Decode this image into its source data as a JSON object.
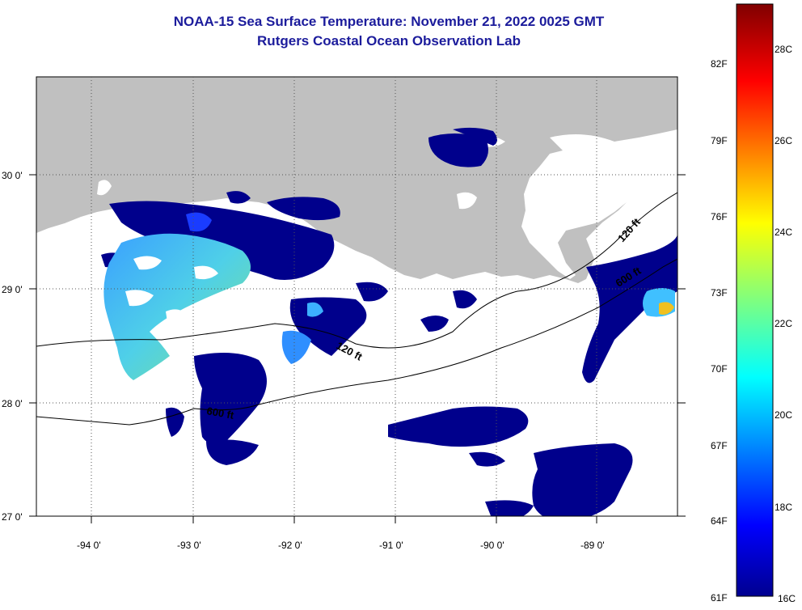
{
  "title": "NOAA-15 Sea Surface Temperature:  November 21, 2022 0025 GMT",
  "subtitle": "Rutgers Coastal Ocean Observation Lab",
  "map": {
    "lat_labels": [
      "30 0'",
      "29 0'",
      "28 0'",
      "27 0'"
    ],
    "lon_labels": [
      "-94 0'",
      "-93 0'",
      "-92 0'",
      "-91 0'",
      "-90 0'",
      "-89 0'"
    ],
    "contour_labels": [
      "120 ft",
      "600 ft",
      "120 ft",
      "600 ft"
    ],
    "land_color": "#c0c0c0",
    "cloud_color": "#ffffff"
  },
  "colorbar": {
    "fahrenheit": [
      "82F",
      "79F",
      "76F",
      "73F",
      "70F",
      "67F",
      "64F",
      "61F"
    ],
    "celsius": [
      "28C",
      "26C",
      "24C",
      "22C",
      "20C",
      "18C",
      "16C"
    ]
  }
}
